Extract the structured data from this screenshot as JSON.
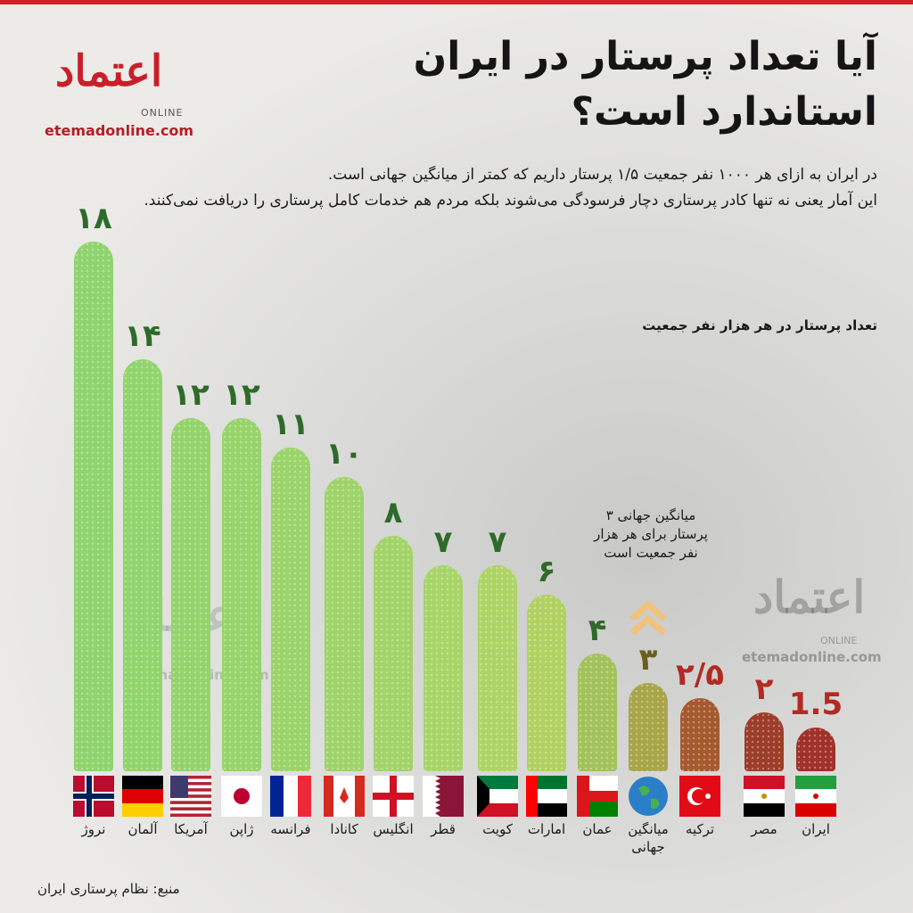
{
  "chart_data": {
    "type": "bar",
    "title": [
      "آیا تعداد پرستار در ایران",
      "استاندارد است؟"
    ],
    "subtitle": [
      "در ایران به ازای هر ۱۰۰۰ نفر جمعیت ۱/۵ پرستار داریم که کمتر از میانگین جهانی است.",
      "این آمار یعنی نه تنها کادر پرستاری دچار فرسودگی می‌شوند بلکه مردم هم خدمات کامل پرستاری را دریافت نمی‌کنند."
    ],
    "y_label": "تعداد پرستار در هر هزار نفر جمعیت",
    "annotation": "میانگین جهانی ۳ پرستار برای هر هزار نفر جمعیت است",
    "source": "منبع: نظام پرستاری ایران",
    "logo": {
      "name": "اعتماد",
      "tag": "ONLINE",
      "url": "etemadonline.com"
    },
    "categories": [
      "نروژ",
      "آلمان",
      "آمریکا",
      "ژاپن",
      "فرانسه",
      "کانادا",
      "انگلیس",
      "قطر",
      "کویت",
      "امارات",
      "عمان",
      "میانگین جهانی",
      "ترکیه",
      "مصر",
      "ایران"
    ],
    "values": [
      18,
      14,
      12,
      12,
      11,
      10,
      8,
      7,
      7,
      6,
      4,
      3,
      2.5,
      2,
      1.5
    ],
    "value_labels": [
      "۱۸",
      "۱۴",
      "۱۲",
      "۱۲",
      "۱۱",
      "۱۰",
      "۸",
      "۷",
      "۷",
      "۶",
      "۴",
      "۳",
      "۲/۵",
      "۲",
      "1.5"
    ],
    "colors": [
      "#8fd46e",
      "#92d46d",
      "#94d46c",
      "#97d46b",
      "#9ad46a",
      "#9ed469",
      "#a2d468",
      "#a8d567",
      "#aed465",
      "#b2d163",
      "#a4c25c",
      "#a8a649",
      "#a5592f",
      "#9c3d29",
      "#a0302a"
    ],
    "label_colors": [
      "#2e6b2a",
      "#2e6b2a",
      "#2e6b2a",
      "#2e6b2a",
      "#2e6b2a",
      "#2e6b2a",
      "#2e6b2a",
      "#2e6b2a",
      "#2e6b2a",
      "#2e6b2a",
      "#2e6b2a",
      "#6b5d1e",
      "#b22a22",
      "#b22a22",
      "#b22a22"
    ]
  }
}
